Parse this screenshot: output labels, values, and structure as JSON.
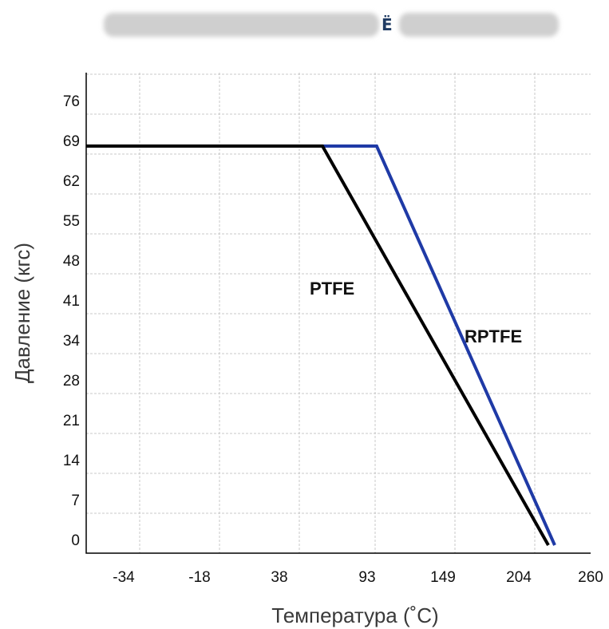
{
  "header": {
    "visible_char": "Ё"
  },
  "chart_data": {
    "type": "line",
    "xlabel": "Температура (˚C)",
    "ylabel": "Давление (кгс)",
    "x_ticks": [
      "-34",
      "-18",
      "38",
      "93",
      "149",
      "204",
      "260"
    ],
    "y_ticks": [
      "0",
      "7",
      "14",
      "21",
      "28",
      "34",
      "41",
      "48",
      "55",
      "62",
      "69",
      "76"
    ],
    "grid": true,
    "series": [
      {
        "name": "PTFE",
        "color": "#000000",
        "points": [
          [
            -45,
            69
          ],
          [
            65,
            69
          ],
          [
            227,
            0
          ]
        ]
      },
      {
        "name": "RPTFE",
        "color": "#1f3aa6",
        "points": [
          [
            -45,
            69
          ],
          [
            100,
            69
          ],
          [
            232,
            0
          ]
        ]
      }
    ]
  }
}
